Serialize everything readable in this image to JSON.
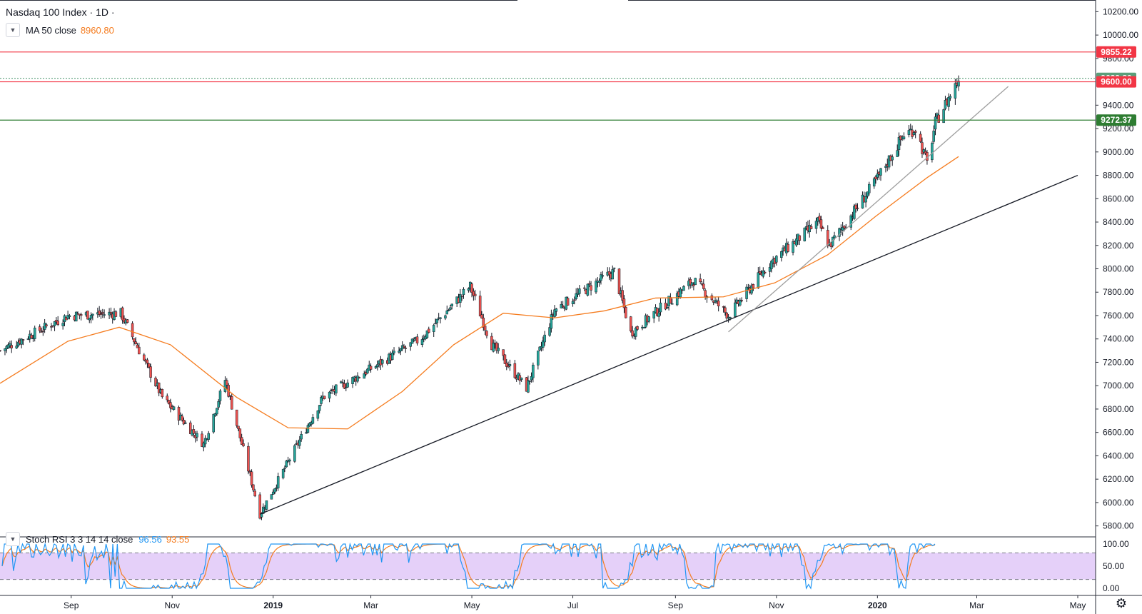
{
  "header": {
    "symbol_title": "Nasdaq 100 Index · 1D ·",
    "ma_label": "MA 50 close",
    "ma_value": "8960.80"
  },
  "stoch_legend": {
    "label": "Stoch RSI 3 3 14 14 close",
    "k_value": "96.56",
    "d_value": "93.55"
  },
  "colors": {
    "candle_up": "#26a69a",
    "candle_down": "#ef5350",
    "ma": "#f57c1f",
    "stoch_k": "#2196f3",
    "stoch_d": "#f57c1f",
    "stoch_band": "#e1c8f8",
    "resistance": "#f23645",
    "support": "#2e7d32"
  },
  "icons": {
    "settings": "gear-icon",
    "collapse": "chevron-down-icon"
  },
  "chart_data": {
    "type": "candlestick",
    "price_axis": {
      "min": 5700,
      "max": 10300,
      "ticks": [
        5800,
        6000,
        6200,
        6400,
        6600,
        6800,
        7000,
        7200,
        7400,
        7600,
        7800,
        8000,
        8200,
        8400,
        8600,
        8800,
        9000,
        9200,
        9400,
        9800,
        10000,
        10200
      ],
      "tick_labels": [
        "5800.00",
        "6000.00",
        "6200.00",
        "6400.00",
        "6600.00",
        "6800.00",
        "7000.00",
        "7200.00",
        "7400.00",
        "7600.00",
        "7800.00",
        "8000.00",
        "8200.00",
        "8400.00",
        "8600.00",
        "8800.00",
        "9000.00",
        "9200.00",
        "9400.00",
        "9800.00",
        "10000.00",
        "10200.00"
      ]
    },
    "time_axis": {
      "labels": [
        "Sep",
        "Nov",
        "2019",
        "Mar",
        "May",
        "Jul",
        "Sep",
        "Nov",
        "2020",
        "Mar",
        "May"
      ],
      "label_dates": [
        "2018-09-01",
        "2018-11-01",
        "2019-01-01",
        "2019-03-01",
        "2019-05-01",
        "2019-07-01",
        "2019-09-01",
        "2019-11-01",
        "2020-01-01",
        "2020-03-01",
        "2020-05-01"
      ]
    },
    "key_points": [
      {
        "date": "2018-07-20",
        "close": 7300
      },
      {
        "date": "2018-08-30",
        "close": 7600
      },
      {
        "date": "2018-10-01",
        "close": 7620
      },
      {
        "date": "2018-10-26",
        "close": 6900
      },
      {
        "date": "2018-11-20",
        "close": 6500
      },
      {
        "date": "2018-12-03",
        "close": 7050
      },
      {
        "date": "2018-12-24",
        "close": 5900
      },
      {
        "date": "2019-01-31",
        "close": 6900
      },
      {
        "date": "2019-03-31",
        "close": 7400
      },
      {
        "date": "2019-04-30",
        "close": 7850
      },
      {
        "date": "2019-05-13",
        "close": 7350
      },
      {
        "date": "2019-06-03",
        "close": 6980
      },
      {
        "date": "2019-06-20",
        "close": 7650
      },
      {
        "date": "2019-07-26",
        "close": 7980
      },
      {
        "date": "2019-08-05",
        "close": 7450
      },
      {
        "date": "2019-09-12",
        "close": 7900
      },
      {
        "date": "2019-10-03",
        "close": 7600
      },
      {
        "date": "2019-10-28",
        "close": 8050
      },
      {
        "date": "2019-11-26",
        "close": 8400
      },
      {
        "date": "2019-12-03",
        "close": 8200
      },
      {
        "date": "2019-12-31",
        "close": 8750
      },
      {
        "date": "2020-01-17",
        "close": 9150
      },
      {
        "date": "2020-01-24",
        "close": 9200
      },
      {
        "date": "2020-01-31",
        "close": 8900
      },
      {
        "date": "2020-02-05",
        "close": 9250
      },
      {
        "date": "2020-02-19",
        "close": 9620
      }
    ],
    "ma50_points": [
      {
        "date": "2018-07-20",
        "value": 7020
      },
      {
        "date": "2018-08-30",
        "value": 7380
      },
      {
        "date": "2018-09-30",
        "value": 7500
      },
      {
        "date": "2018-10-31",
        "value": 7350
      },
      {
        "date": "2018-12-10",
        "value": 6900
      },
      {
        "date": "2019-01-10",
        "value": 6640
      },
      {
        "date": "2019-02-15",
        "value": 6630
      },
      {
        "date": "2019-03-20",
        "value": 6950
      },
      {
        "date": "2019-04-20",
        "value": 7350
      },
      {
        "date": "2019-05-20",
        "value": 7620
      },
      {
        "date": "2019-06-20",
        "value": 7580
      },
      {
        "date": "2019-07-20",
        "value": 7640
      },
      {
        "date": "2019-08-20",
        "value": 7750
      },
      {
        "date": "2019-09-30",
        "value": 7760
      },
      {
        "date": "2019-10-31",
        "value": 7880
      },
      {
        "date": "2019-12-02",
        "value": 8120
      },
      {
        "date": "2019-12-31",
        "value": 8450
      },
      {
        "date": "2020-01-31",
        "value": 8780
      },
      {
        "date": "2020-02-19",
        "value": 8960
      }
    ],
    "horizontal_levels": [
      {
        "value": 9855.22,
        "label": "9855.22",
        "color": "#f23645",
        "style": "solid"
      },
      {
        "value": 9629.8,
        "label": "9629.80",
        "color": "#5a9f7a",
        "style": "dotted"
      },
      {
        "value": 9600.0,
        "label": "9600.00",
        "color": "#f23645",
        "style": "solid"
      },
      {
        "value": 9272.37,
        "label": "9272.37",
        "color": "#2e7d32",
        "style": "solid"
      }
    ],
    "trendlines": [
      {
        "from": {
          "date": "2018-12-24",
          "value": 5900
        },
        "to": {
          "date": "2020-05-01",
          "value": 8800
        },
        "color": "#131722"
      },
      {
        "from": {
          "date": "2019-10-03",
          "value": 7460
        },
        "to": {
          "date": "2020-03-20",
          "value": 9560
        },
        "color": "#9e9e9e"
      }
    ],
    "stoch_rsi": {
      "range": [
        0,
        100
      ],
      "ticks": [
        0,
        50,
        100
      ],
      "tick_labels": [
        "0.00",
        "50.00",
        "100.00"
      ],
      "band": [
        20,
        80
      ]
    }
  }
}
